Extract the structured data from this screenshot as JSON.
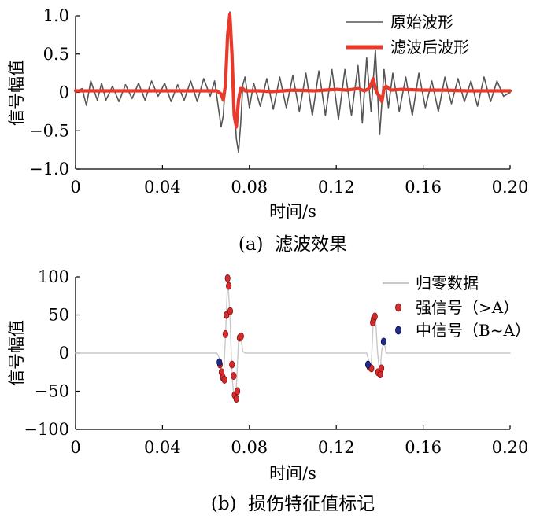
{
  "colors": {
    "raw": "#555555",
    "filtered": "#e8392a",
    "zeroed": "#c8c8c8",
    "strong": "#d92b2b",
    "medium": "#1e2a8c"
  },
  "chart_data": [
    {
      "type": "line",
      "caption": "(a)  滤波效果",
      "xlabel": "时间/s",
      "ylabel": "信号幅值",
      "xlim": [
        0,
        0.2
      ],
      "ylim": [
        -1.0,
        1.0
      ],
      "xticks": [
        "0",
        "0.04",
        "0.08",
        "0.12",
        "0.16",
        "0.20"
      ],
      "yticks": [
        "1.0",
        "0.5",
        "0",
        "−0.5",
        "−1.0"
      ],
      "legend_position": "top-right",
      "series": [
        {
          "name": "原始波形",
          "x": [
            0.0,
            0.003,
            0.005,
            0.007,
            0.01,
            0.012,
            0.014,
            0.017,
            0.02,
            0.023,
            0.026,
            0.029,
            0.032,
            0.035,
            0.038,
            0.041,
            0.044,
            0.047,
            0.05,
            0.053,
            0.056,
            0.059,
            0.062,
            0.064,
            0.066,
            0.067,
            0.068,
            0.069,
            0.07,
            0.071,
            0.072,
            0.073,
            0.074,
            0.075,
            0.076,
            0.077,
            0.078,
            0.08,
            0.082,
            0.085,
            0.088,
            0.091,
            0.094,
            0.097,
            0.1,
            0.103,
            0.106,
            0.109,
            0.112,
            0.115,
            0.118,
            0.121,
            0.124,
            0.127,
            0.13,
            0.132,
            0.134,
            0.136,
            0.138,
            0.14,
            0.142,
            0.144,
            0.146,
            0.149,
            0.152,
            0.155,
            0.158,
            0.161,
            0.164,
            0.167,
            0.17,
            0.173,
            0.176,
            0.179,
            0.182,
            0.185,
            0.188,
            0.191,
            0.194,
            0.197,
            0.2
          ],
          "y": [
            0.0,
            0.05,
            -0.17,
            0.15,
            -0.1,
            0.12,
            -0.1,
            0.08,
            -0.12,
            0.1,
            -0.08,
            0.12,
            -0.1,
            0.15,
            -0.05,
            0.12,
            -0.12,
            0.1,
            -0.1,
            0.15,
            -0.12,
            0.18,
            -0.05,
            0.15,
            -0.25,
            -0.45,
            -0.3,
            0.2,
            0.85,
            1.05,
            0.6,
            -0.1,
            -0.6,
            -0.78,
            -0.4,
            0.1,
            0.2,
            -0.2,
            0.12,
            -0.18,
            0.18,
            -0.22,
            0.2,
            -0.2,
            0.22,
            -0.25,
            0.25,
            -0.3,
            0.28,
            -0.3,
            0.3,
            -0.35,
            0.3,
            -0.3,
            0.35,
            -0.4,
            0.45,
            -0.25,
            0.55,
            -0.55,
            0.3,
            -0.2,
            0.25,
            -0.25,
            0.2,
            -0.3,
            0.25,
            -0.2,
            0.15,
            -0.25,
            0.2,
            -0.15,
            0.18,
            -0.12,
            0.15,
            -0.18,
            0.2,
            -0.12,
            0.15,
            -0.05,
            0.0
          ]
        },
        {
          "name": "滤波后波形",
          "x": [
            0.0,
            0.01,
            0.02,
            0.03,
            0.04,
            0.05,
            0.06,
            0.065,
            0.067,
            0.068,
            0.069,
            0.07,
            0.071,
            0.072,
            0.073,
            0.074,
            0.075,
            0.076,
            0.077,
            0.078,
            0.08,
            0.085,
            0.09,
            0.1,
            0.11,
            0.12,
            0.125,
            0.13,
            0.133,
            0.135,
            0.136,
            0.137,
            0.138,
            0.139,
            0.14,
            0.141,
            0.142,
            0.143,
            0.145,
            0.15,
            0.16,
            0.17,
            0.18,
            0.19,
            0.2
          ],
          "y": [
            0.02,
            0.02,
            0.02,
            0.02,
            0.02,
            0.02,
            0.02,
            0.02,
            -0.02,
            -0.1,
            0.1,
            0.75,
            1.02,
            0.5,
            -0.3,
            -0.45,
            -0.1,
            0.05,
            0.05,
            0.02,
            0.02,
            0.02,
            0.01,
            0.03,
            0.02,
            0.04,
            0.03,
            0.05,
            0.02,
            0.05,
            0.1,
            0.18,
            0.05,
            -0.02,
            -0.05,
            -0.12,
            0.05,
            0.08,
            0.03,
            0.04,
            0.03,
            0.03,
            0.02,
            0.02,
            0.02
          ]
        }
      ]
    },
    {
      "type": "scatter",
      "caption": "(b)  损伤特征值标记",
      "xlabel": "时间/s",
      "ylabel": "信号幅值",
      "xlim": [
        0,
        0.2
      ],
      "ylim": [
        -100,
        100
      ],
      "xticks": [
        "0",
        "0.04",
        "0.08",
        "0.12",
        "0.16",
        "0.20"
      ],
      "yticks": [
        "100",
        "50",
        "0",
        "−50",
        "−100"
      ],
      "legend_position": "top-right",
      "series": [
        {
          "name": "归零数据",
          "mark": "line",
          "x": [
            0.0,
            0.065,
            0.066,
            0.067,
            0.068,
            0.069,
            0.07,
            0.071,
            0.072,
            0.073,
            0.074,
            0.075,
            0.076,
            0.077,
            0.078,
            0.134,
            0.135,
            0.136,
            0.137,
            0.138,
            0.139,
            0.14,
            0.141,
            0.142,
            0.143,
            0.2
          ],
          "y": [
            0,
            0,
            -5,
            -28,
            -35,
            20,
            95,
            55,
            -30,
            -60,
            -45,
            15,
            22,
            2,
            0,
            0,
            -10,
            -22,
            40,
            48,
            2,
            -28,
            5,
            15,
            0,
            0
          ]
        },
        {
          "name": "强信号（>A）",
          "mark": "point",
          "x": [
            0.0665,
            0.0672,
            0.0678,
            0.0685,
            0.069,
            0.0695,
            0.07,
            0.0705,
            0.0712,
            0.072,
            0.0728,
            0.0732,
            0.074,
            0.0745,
            0.0755,
            0.0762,
            0.1352,
            0.1362,
            0.1368,
            0.1372,
            0.1378,
            0.1392,
            0.1402,
            0.1408
          ],
          "y": [
            -15,
            -25,
            -32,
            -35,
            25,
            50,
            98,
            88,
            55,
            -15,
            -30,
            -55,
            -60,
            -50,
            20,
            22,
            -18,
            -20,
            40,
            45,
            48,
            -25,
            -28,
            -20
          ]
        },
        {
          "name": "中信号（B~A）",
          "mark": "point",
          "x": [
            0.0662,
            0.1346,
            0.1418
          ],
          "y": [
            -12,
            -15,
            15
          ]
        }
      ]
    }
  ]
}
